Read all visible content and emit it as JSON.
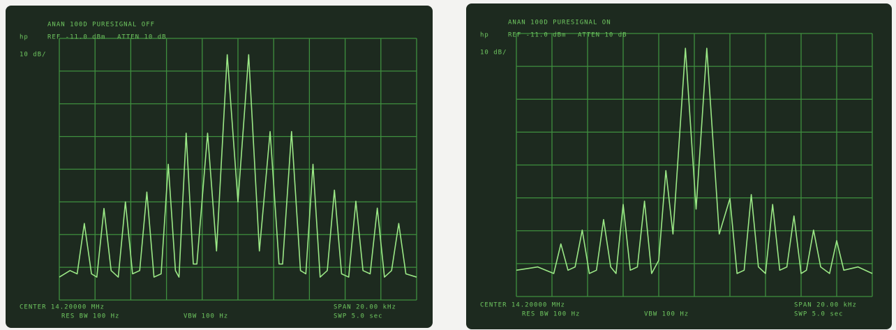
{
  "chart_data": [
    {
      "type": "line",
      "title": "ANAN 100D PURESIGNAL OFF",
      "annotations": [
        "hp",
        "REF -11.0 dBm",
        "ATTEN 10 dB",
        "10 dB/",
        "CENTER 14.20000 MHz",
        "RES BW 100 Hz",
        "VBW 100 Hz",
        "SPAN 20.00 kHz",
        "SWP 5.0 sec"
      ],
      "xlim": [
        -10,
        10
      ],
      "ylim": [
        -91,
        -11
      ],
      "color": "#9be886",
      "x": [
        -10,
        -9.4,
        -9.0,
        -8.6,
        -8.2,
        -7.9,
        -7.5,
        -7.1,
        -6.7,
        -6.3,
        -5.9,
        -5.5,
        -5.1,
        -4.7,
        -4.3,
        -3.9,
        -3.5,
        -3.3,
        -2.9,
        -2.5,
        -2.3,
        -1.7,
        -1.2,
        -0.6,
        0,
        0.6,
        1.2,
        1.8,
        2.3,
        2.5,
        3.0,
        3.5,
        3.8,
        4.2,
        4.6,
        5.0,
        5.4,
        5.8,
        6.2,
        6.6,
        7.0,
        7.4,
        7.8,
        8.2,
        8.6,
        9.0,
        9.4,
        10
      ],
      "values": [
        -84,
        -82,
        -83,
        -67.6,
        -83,
        -84,
        -63,
        -82,
        -84,
        -61,
        -83,
        -82,
        -58,
        -84,
        -83,
        -49.5,
        -82,
        -84,
        -40,
        -80,
        -80,
        -40,
        -76,
        -16,
        -61,
        -16,
        -76,
        -39.5,
        -80,
        -80,
        -39.5,
        -82,
        -83,
        -49.5,
        -84,
        -82,
        -57.4,
        -83,
        -84,
        -60.8,
        -82,
        -83,
        -62.9,
        -84,
        -82,
        -67.6,
        -83,
        -84
      ]
    },
    {
      "type": "line",
      "title": "ANAN 100D PURESIGNAL ON",
      "annotations": [
        "hp",
        "REF -11.0 dBm",
        "ATTEN 10 dB",
        "10 dB/",
        "CENTER 14.20000 MHz",
        "RES BW 100 Hz",
        "VBW 100 Hz",
        "SPAN 20.00 kHz",
        "SWP 5.0 sec"
      ],
      "xlim": [
        -10,
        10
      ],
      "ylim": [
        -91,
        -11
      ],
      "color": "#9be886",
      "x": [
        -10,
        -8.8,
        -7.9,
        -7.5,
        -7.1,
        -6.7,
        -6.3,
        -5.9,
        -5.5,
        -5.1,
        -4.7,
        -4.4,
        -4.0,
        -3.6,
        -3.2,
        -2.8,
        -2.4,
        -2.0,
        -1.6,
        -1.2,
        -0.5,
        0.1,
        0.7,
        1.4,
        2.0,
        2.4,
        2.8,
        3.2,
        3.6,
        4.0,
        4.4,
        4.8,
        5.2,
        5.6,
        6.0,
        6.3,
        6.7,
        7.1,
        7.6,
        8.0,
        8.4,
        9.2,
        10
      ],
      "values": [
        -83,
        -82,
        -84,
        -75,
        -83,
        -82,
        -70.8,
        -84,
        -83,
        -67.6,
        -82,
        -84,
        -63,
        -83,
        -82,
        -62,
        -84,
        -80,
        -52.7,
        -72,
        -15.5,
        -64.4,
        -15.5,
        -72,
        -61.2,
        -84,
        -83,
        -60,
        -82,
        -84,
        -63,
        -83,
        -82,
        -66.5,
        -84,
        -83,
        -70.8,
        -82,
        -84,
        -74,
        -83,
        -82,
        -84
      ]
    }
  ]
}
